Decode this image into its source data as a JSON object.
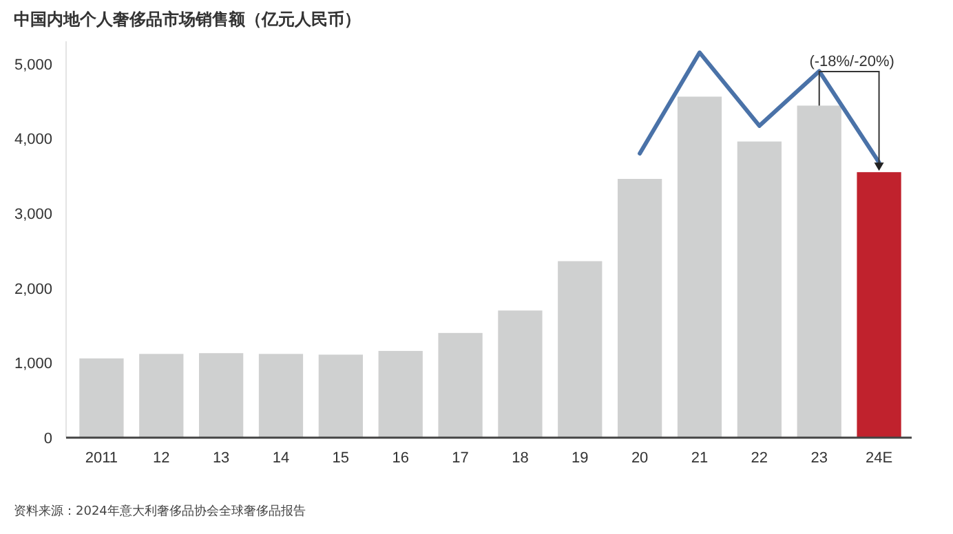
{
  "chart_data": {
    "type": "bar",
    "title": "中国内地个人奢侈品市场销售额（亿元人民币）",
    "categories": [
      "2011",
      "12",
      "13",
      "14",
      "15",
      "16",
      "17",
      "18",
      "19",
      "20",
      "21",
      "22",
      "23",
      "24E"
    ],
    "series": [
      {
        "colors": [
          "#cfd0d0",
          "#cfd0d0",
          "#cfd0d0",
          "#cfd0d0",
          "#cfd0d0",
          "#cfd0d0",
          "#cfd0d0",
          "#cfd0d0",
          "#cfd0d0",
          "#cfd0d0",
          "#cfd0d0",
          "#cfd0d0",
          "#cfd0d0",
          "#c0222d"
        ],
        "values": [
          1060,
          1120,
          1130,
          1120,
          1110,
          1160,
          1400,
          1700,
          2360,
          3460,
          4560,
          3960,
          4440,
          3550
        ]
      },
      {
        "type": "line",
        "color": "#4a72a8",
        "values": [
          null,
          null,
          null,
          null,
          null,
          null,
          null,
          null,
          null,
          3800,
          5150,
          4170,
          4900,
          3680
        ]
      }
    ],
    "ylim": [
      0,
      5300
    ],
    "yticks": [
      0,
      {
        "value": 1000,
        "label": "1,000"
      },
      {
        "value": 2000,
        "label": "2,000"
      },
      {
        "value": 3000,
        "label": "3,000"
      },
      {
        "value": 4000,
        "label": "4,000"
      },
      {
        "value": 5000,
        "label": "5,000"
      }
    ],
    "grid": false,
    "annotations": [
      "(-18%/-20%)",
      "资料来源：2024年意大利奢侈品协会全球奢侈品报告"
    ]
  }
}
